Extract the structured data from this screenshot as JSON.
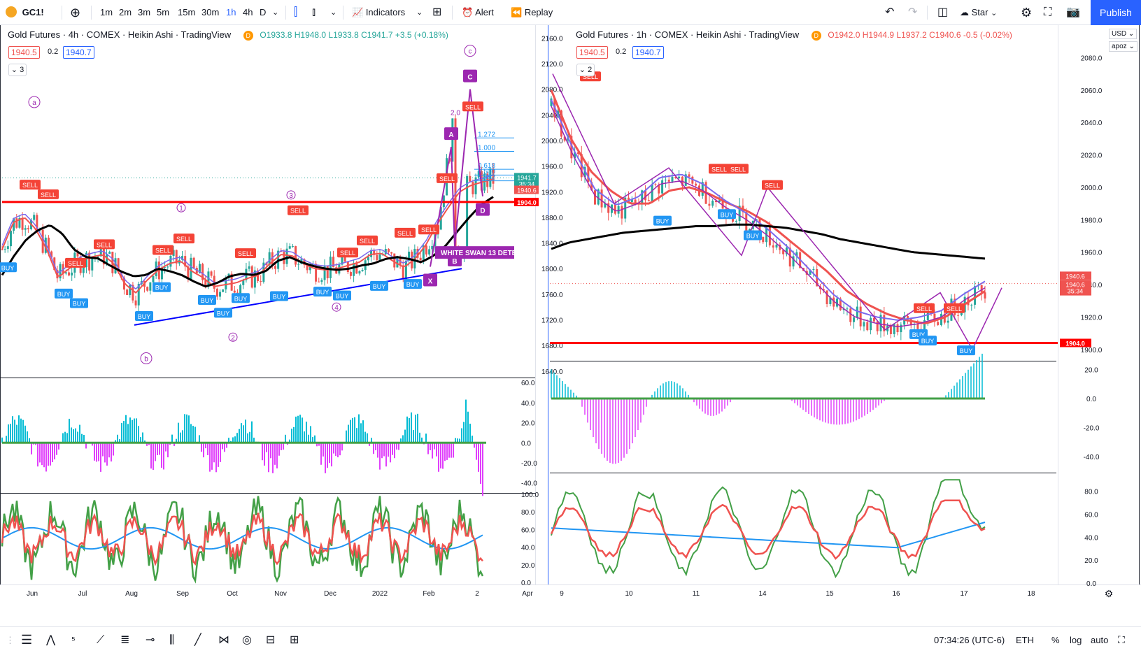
{
  "toolbar": {
    "symbol": "GC1!",
    "intervals": [
      "1m",
      "2m",
      "3m",
      "5m",
      "15m",
      "30m",
      "1h",
      "4h",
      "D"
    ],
    "active_interval": "1h",
    "indicators": "Indicators",
    "alert": "Alert",
    "replay": "Replay",
    "star": "Star",
    "publish": "Publish"
  },
  "left_chart": {
    "title": "Gold Futures · 4h · COMEX · Heikin Ashi · TradingView",
    "badge": "D",
    "ohlc": "O1933.8 H1948.0 L1933.8 C1941.7 +3.5 (+0.18%)",
    "bid": "1940.5",
    "spread": "0.2",
    "ask": "1940.7",
    "collapsed_count": "3",
    "banner": "WHITE SWAN 13 DETEC",
    "price_labels": [
      "1941.7",
      "35:34",
      "1940.6",
      "1904.0"
    ],
    "fib_labels": [
      "1.272",
      "1.000",
      "0.618",
      "0.500",
      "0.382"
    ],
    "wave_labels": [
      "a",
      "b",
      "c",
      "1",
      "2",
      "3",
      "4"
    ],
    "pattern_labels": [
      "A",
      "B",
      "C",
      "D",
      "X"
    ],
    "pattern_ratio": "2.0"
  },
  "right_chart": {
    "title": "Gold Futures · 1h · COMEX · Heikin Ashi · TradingView",
    "badge": "D",
    "ohlc": "O1942.0 H1944.9 L1937.2 C1940.6 -0.5 (-0.02%)",
    "bid": "1940.5",
    "spread": "0.2",
    "ask": "1940.7",
    "collapsed_count": "2",
    "currency": "USD",
    "scale_mode": "apoz",
    "price_labels": [
      "1940.6",
      "1940.6",
      "35:34",
      "1904.0"
    ]
  },
  "bottom_bar": {
    "clock": "07:34:26 (UTC-6)",
    "session": "ETH",
    "percent": "%",
    "log": "log",
    "auto": "auto"
  },
  "colors": {
    "support": "#ff0000",
    "trendline": "#0000ff",
    "sma": "#000000",
    "ema_fast": "#ef5350",
    "ema_mid": "#7b68ee",
    "pattern": "#9c27b0",
    "buy": "#2196f3",
    "sell": "#f44336",
    "hist_up": "#00bcd4",
    "hist_down": "#e040fb",
    "osc_green": "#43a047",
    "osc_red": "#ef5350",
    "osc_blue": "#2196f3"
  },
  "chart_data": [
    {
      "type": "line",
      "title": "Gold Futures · 4h · COMEX · Heikin Ashi",
      "x_ticks": [
        "Jun",
        "Jul",
        "Aug",
        "Sep",
        "Oct",
        "Nov",
        "Dec",
        "2022",
        "Feb",
        "2",
        "Apr"
      ],
      "y_ticks": [
        1640.0,
        1680.0,
        1720.0,
        1760.0,
        1800.0,
        1840.0,
        1880.0,
        1920.0,
        1960.0,
        2000.0,
        2040.0,
        2080.0,
        2120.0,
        2160.0
      ],
      "ylim": [
        1630,
        2180
      ],
      "horizontal_level": 1904.0,
      "last_price": 1941.7,
      "series": [
        {
          "values": [
            1830,
            1872,
            1880,
            1862,
            1830,
            1786,
            1800,
            1812,
            1818,
            1822,
            1808,
            1776,
            1762,
            1782,
            1798,
            1808,
            1812,
            1796,
            1786,
            1772,
            1775,
            1778,
            1785,
            1790,
            1808,
            1822,
            1820,
            1808,
            1800,
            1798,
            1800,
            1805,
            1810,
            1822,
            1824,
            1812,
            1802,
            1815,
            1838,
            1870,
            1896,
            1920,
            1930,
            1935,
            1940
          ]
        },
        {
          "values": [
            1790,
            1820,
            1845,
            1860,
            1868,
            1855,
            1830,
            1818,
            1816,
            1805,
            1795,
            1788,
            1790,
            1800,
            1796,
            1790,
            1780,
            1772,
            1778,
            1788,
            1792,
            1790,
            1796,
            1812,
            1818,
            1810,
            1804,
            1800,
            1798,
            1800,
            1805,
            1808,
            1815,
            1818,
            1815,
            1810,
            1820,
            1835,
            1858,
            1880,
            1900,
            1912
          ]
        }
      ],
      "oscillators": [
        {
          "name": "momentum",
          "ylim": [
            -50,
            65
          ],
          "y_ticks": [
            -40.0,
            -20.0,
            0.0,
            20.0,
            40.0,
            60.0
          ]
        },
        {
          "name": "stochastic",
          "ylim": [
            0,
            100
          ],
          "y_ticks": [
            0.0,
            20.0,
            40.0,
            60.0,
            80.0,
            100.0
          ]
        }
      ]
    },
    {
      "type": "line",
      "title": "Gold Futures · 1h · COMEX · Heikin Ashi",
      "x_ticks": [
        "9",
        "10",
        "11",
        "14",
        "15",
        "16",
        "17",
        "18"
      ],
      "y_ticks": [
        1900.0,
        1920.0,
        1940.0,
        1960.0,
        1980.0,
        2000.0,
        2020.0,
        2040.0,
        2060.0,
        2080.0
      ],
      "ylim": [
        1893,
        2100
      ],
      "horizontal_level": 1904.0,
      "last_price": 1940.6,
      "series": [
        {
          "values": [
            1962,
            1966,
            1968,
            1970,
            1972,
            1973,
            1974,
            1975,
            1976,
            1976,
            1977,
            1977,
            1976,
            1975,
            1973,
            1971,
            1968,
            1966,
            1964,
            1962,
            1960,
            1959,
            1958,
            1957,
            1956
          ]
        },
        {
          "values": [
            2060,
            2030,
            2010,
            1998,
            1990,
            1990,
            1998,
            2000,
            1996,
            1990,
            1985,
            1978,
            1968,
            1958,
            1948,
            1936,
            1928,
            1922,
            1918,
            1916,
            1920,
            1928,
            1936
          ]
        },
        {
          "values": [
            2050,
            2020,
            1995,
            1985,
            1990,
            2002,
            2004,
            1998,
            1988,
            1980,
            1970,
            1958,
            1944,
            1930,
            1920,
            1916,
            1914,
            1916,
            1920,
            1930,
            1938
          ]
        }
      ],
      "oscillators": [
        {
          "name": "momentum",
          "ylim": [
            -50,
            25
          ],
          "y_ticks": [
            -40.0,
            -20.0,
            0.0,
            20.0
          ]
        },
        {
          "name": "stochastic",
          "ylim": [
            0,
            95
          ],
          "y_ticks": [
            0.0,
            20.0,
            40.0,
            60.0,
            80.0
          ]
        }
      ]
    }
  ]
}
